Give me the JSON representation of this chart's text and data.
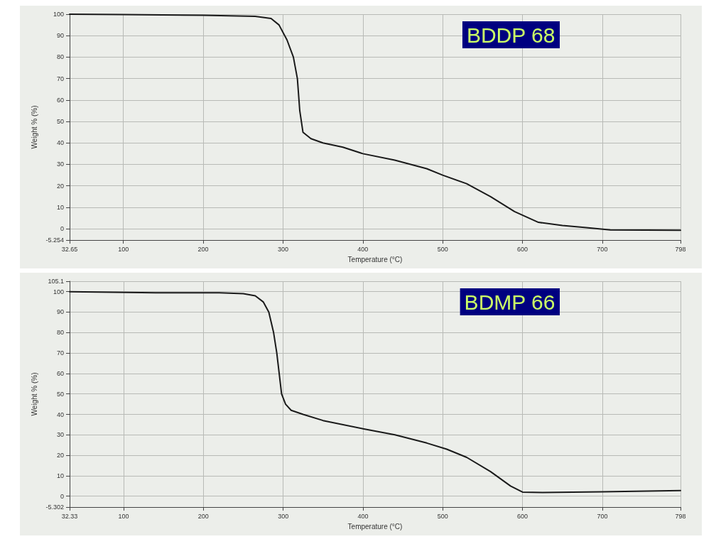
{
  "chart_data": [
    {
      "type": "line",
      "title": "BDDP 68",
      "xlabel": "Temperature (°C)",
      "ylabel": "Weight % (%)",
      "xlim": [
        32.65,
        798
      ],
      "ylim": [
        -5.254,
        100
      ],
      "xticks": [
        32.65,
        100,
        200,
        300,
        400,
        500,
        600,
        700,
        798
      ],
      "yticks": [
        -5.254,
        0,
        10,
        20,
        30,
        40,
        50,
        60,
        70,
        80,
        90,
        100
      ],
      "grid": true,
      "marker": "none",
      "line_style": "solid",
      "series": [
        {
          "color": "#1a1a1a",
          "x": [
            32.65,
            100,
            200,
            265,
            285,
            295,
            305,
            313,
            318,
            321,
            325,
            335,
            350,
            375,
            400,
            440,
            480,
            500,
            530,
            560,
            590,
            620,
            650,
            680,
            710,
            798
          ],
          "values": [
            100,
            99.8,
            99.5,
            99,
            98,
            95,
            88,
            80,
            70,
            55,
            45,
            42,
            40,
            38,
            35,
            32,
            28,
            25,
            21,
            15,
            8,
            3,
            1.5,
            0.5,
            -0.5,
            -0.7
          ]
        }
      ]
    },
    {
      "type": "line",
      "title": "BDMP 66",
      "xlabel": "Temperature (°C)",
      "ylabel": "Weight % (%)",
      "xlim": [
        32.33,
        798
      ],
      "ylim": [
        -5.302,
        105.1
      ],
      "xticks": [
        32.33,
        100,
        200,
        300,
        400,
        500,
        600,
        700,
        798
      ],
      "yticks": [
        -5.302,
        0,
        10,
        20,
        30,
        40,
        50,
        60,
        70,
        80,
        90,
        100,
        105.1
      ],
      "grid": true,
      "marker": "none",
      "line_style": "solid",
      "series": [
        {
          "color": "#1a1a1a",
          "x": [
            32.33,
            140,
            220,
            250,
            265,
            275,
            282,
            288,
            292,
            295,
            298,
            303,
            310,
            325,
            350,
            400,
            440,
            480,
            505,
            530,
            560,
            585,
            600,
            625,
            700,
            798
          ],
          "values": [
            100,
            99.5,
            99.5,
            99,
            98,
            95,
            90,
            80,
            70,
            60,
            50,
            45,
            42,
            40,
            37,
            33,
            30,
            26,
            23,
            19,
            12,
            5,
            2,
            1.8,
            2.2,
            2.8
          ]
        }
      ]
    }
  ]
}
